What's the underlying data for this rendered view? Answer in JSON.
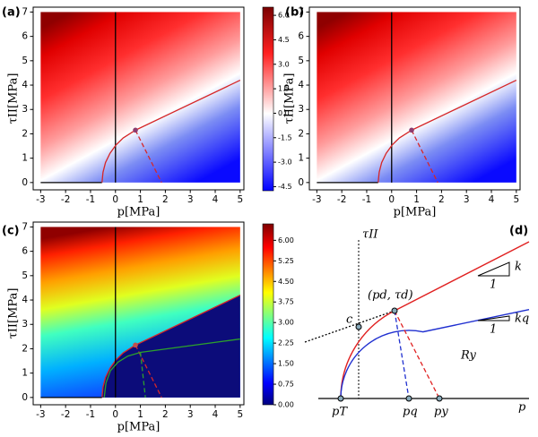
{
  "chart_data": [
    {
      "type": "contour",
      "panel_label": "(a)",
      "xlabel": "p[MPa]",
      "ylabel": "τII[MPa]",
      "colormap": "bwr",
      "xlim": [
        -3.3,
        5.15
      ],
      "ylim": [
        -0.3,
        7.2
      ],
      "xticks": [
        -3,
        -2,
        -1,
        0,
        1,
        2,
        3,
        4,
        5
      ],
      "yticks": [
        0,
        1,
        2,
        3,
        4,
        5,
        6,
        7
      ],
      "colorbar": {
        "lim": [
          -4.75,
          6.5
        ],
        "ticks": [
          {
            "value": 6,
            "label": "6.0"
          },
          4.5,
          {
            "value": 3,
            "label": "3.0"
          },
          1.5,
          {
            "value": 0,
            "label": "0.0"
          },
          -1.5,
          {
            "value": -3,
            "label": "-3.0"
          },
          -4.5
        ]
      },
      "series": [
        {
          "color": "#000000",
          "style": "solid",
          "x": [
            0,
            0
          ],
          "y": [
            0,
            7
          ]
        },
        {
          "color": "#000000",
          "style": "solid",
          "x": [
            -3,
            -0.54
          ],
          "y": [
            0,
            0
          ]
        },
        {
          "color": "#d62728",
          "style": "solid",
          "x": [
            -0.54,
            -0.5,
            -0.4,
            -0.22,
            0.02,
            0.31,
            0.8,
            5
          ],
          "y": [
            0,
            0.42,
            0.82,
            1.2,
            1.54,
            1.83,
            2.15,
            4.2
          ]
        },
        {
          "color": "#d62728",
          "style": "dashed",
          "x": [
            0.8,
            1.85
          ],
          "y": [
            2.15,
            0
          ]
        },
        {
          "color": "#8e3b6e",
          "style": "point",
          "x": [
            0.8
          ],
          "y": [
            2.15
          ]
        }
      ]
    },
    {
      "type": "contour",
      "panel_label": "(b)",
      "xlabel": "p[MPa]",
      "ylabel": "τII[MPa]",
      "colormap": "bwr",
      "xlim": [
        -3.3,
        5.15
      ],
      "ylim": [
        -0.3,
        7.2
      ],
      "xticks": [
        -3,
        -2,
        -1,
        0,
        1,
        2,
        3,
        4,
        5
      ],
      "yticks": [
        0,
        1,
        2,
        3,
        4,
        5,
        6,
        7
      ],
      "series": [
        {
          "color": "#000000",
          "style": "solid",
          "x": [
            0,
            0
          ],
          "y": [
            0,
            7
          ]
        },
        {
          "color": "#000000",
          "style": "solid",
          "x": [
            -3,
            -0.54
          ],
          "y": [
            0,
            0
          ]
        },
        {
          "color": "#d62728",
          "style": "solid",
          "x": [
            -0.54,
            -0.5,
            -0.4,
            -0.22,
            0.02,
            0.31,
            0.8,
            5
          ],
          "y": [
            0,
            0.42,
            0.82,
            1.2,
            1.54,
            1.83,
            2.15,
            4.2
          ]
        },
        {
          "color": "#d62728",
          "style": "dashed",
          "x": [
            0.8,
            1.85
          ],
          "y": [
            2.15,
            0
          ]
        },
        {
          "color": "#8e3b6e",
          "style": "point",
          "x": [
            0.8
          ],
          "y": [
            2.15
          ]
        }
      ]
    },
    {
      "type": "contour",
      "panel_label": "(c)",
      "xlabel": "p[MPa]",
      "ylabel": "τII[MPa]",
      "colormap": "jet",
      "region_color": "#0c0c7a",
      "xlim": [
        -3.3,
        5.15
      ],
      "ylim": [
        -0.3,
        7.2
      ],
      "xticks": [
        -3,
        -2,
        -1,
        0,
        1,
        2,
        3,
        4,
        5
      ],
      "yticks": [
        0,
        1,
        2,
        3,
        4,
        5,
        6,
        7
      ],
      "colorbar": {
        "lim": [
          0,
          6.6
        ],
        "ticks": [
          {
            "value": 6,
            "label": "6.00"
          },
          5.25,
          {
            "value": 4.5,
            "label": "4.50"
          },
          3.75,
          {
            "value": 3,
            "label": "3.00"
          },
          2.25,
          {
            "value": 1.5,
            "label": "1.50"
          },
          0.75,
          {
            "value": 0,
            "label": "0.00"
          }
        ]
      },
      "series": [
        {
          "color": "#d62728",
          "style": "solid",
          "x": [
            -0.54,
            -0.5,
            -0.4,
            -0.22,
            0.02,
            0.31,
            0.8,
            5
          ],
          "y": [
            0,
            0.42,
            0.82,
            1.2,
            1.54,
            1.83,
            2.15,
            4.2
          ]
        },
        {
          "color": "#000000",
          "style": "solid",
          "x": [
            0,
            0
          ],
          "y": [
            0,
            7
          ]
        },
        {
          "color": "#000000",
          "style": "solid",
          "x": [
            -3,
            -0.54
          ],
          "y": [
            0,
            0
          ]
        },
        {
          "color": "#d62728",
          "style": "dashed",
          "x": [
            0.8,
            1.85
          ],
          "y": [
            2.15,
            0
          ]
        },
        {
          "color": "#2ca02c",
          "style": "solid",
          "x": [
            -0.45,
            -0.38,
            -0.2,
            0.1,
            0.5,
            1.0,
            5
          ],
          "y": [
            0,
            0.6,
            1.1,
            1.45,
            1.7,
            1.85,
            2.4
          ]
        },
        {
          "color": "#2ca02c",
          "style": "dashed",
          "x": [
            1.0,
            1.2
          ],
          "y": [
            1.85,
            0
          ]
        },
        {
          "color": "#c0504d",
          "style": "point",
          "x": [
            0.8
          ],
          "y": [
            2.15
          ]
        }
      ]
    },
    {
      "type": "diagram",
      "panel_label": "(d)",
      "labels": {
        "tau": "τII",
        "p": "p",
        "peak": "(pd, τd)",
        "k": "k",
        "k_one": "1",
        "kq": "kq",
        "kq_one": "1",
        "c": "c",
        "ry": "Ry",
        "pt": "pT",
        "pq": "pq",
        "py": "py"
      }
    }
  ]
}
